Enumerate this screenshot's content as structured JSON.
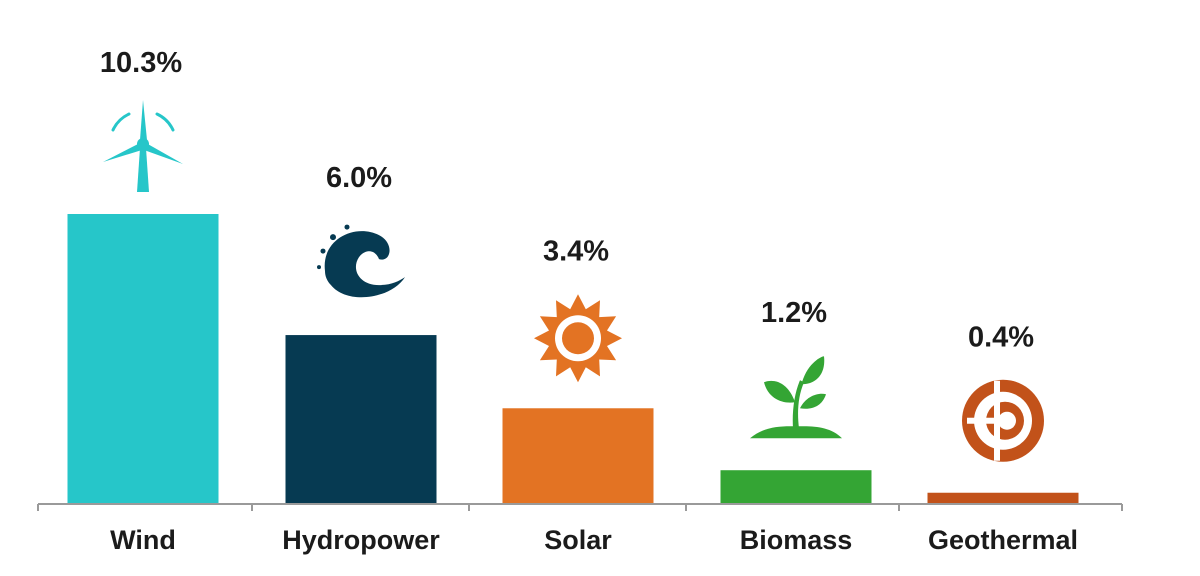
{
  "chart_data": {
    "type": "bar",
    "categories": [
      "Wind",
      "Hydropower",
      "Solar",
      "Biomass",
      "Geothermal"
    ],
    "values": [
      10.3,
      6.0,
      3.4,
      1.2,
      0.4
    ],
    "value_labels": [
      "10.3%",
      "6.0%",
      "3.4%",
      "1.2%",
      "0.4%"
    ],
    "colors": [
      "#26c6c9",
      "#063a52",
      "#e37323",
      "#34a534",
      "#c2521a"
    ],
    "icons": [
      "wind-turbine-icon",
      "water-wave-icon",
      "sun-icon",
      "plant-sprout-icon",
      "geothermal-globe-icon"
    ],
    "ylim": [
      0,
      10.3
    ],
    "title": "",
    "xlabel": "",
    "ylabel": "",
    "grid": false,
    "legend": "none"
  }
}
